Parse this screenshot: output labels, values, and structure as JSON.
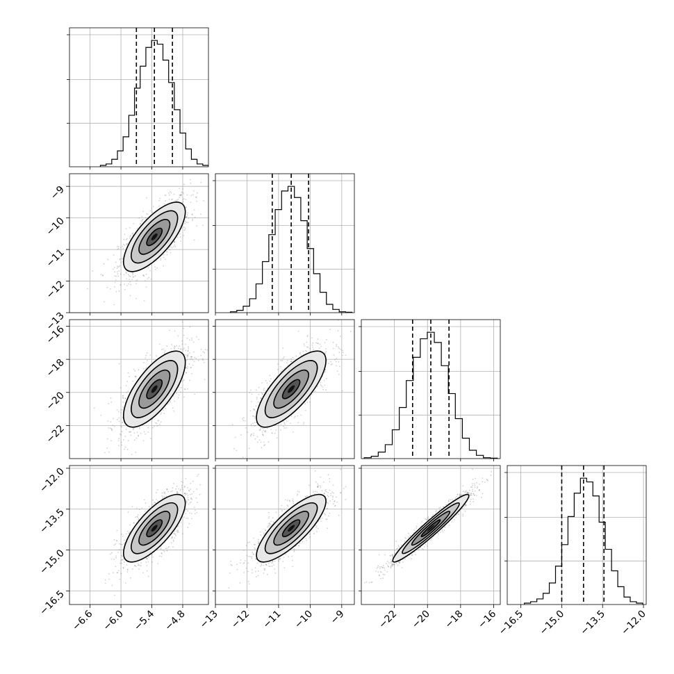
{
  "chart_data": {
    "type": "corner",
    "grid": true,
    "parameters": [
      {
        "mean": -5.35,
        "sigma": 0.3,
        "range": [
          -7.0,
          -4.3
        ],
        "ticks": [
          -6.6,
          -6.0,
          -5.4,
          -4.8
        ],
        "tick_labels": [
          "−6.6",
          "−6.0",
          "−5.4",
          "−4.8"
        ],
        "quantiles": [
          -5.7,
          -5.35,
          -5.0
        ],
        "hist_counts": [
          3,
          6,
          16,
          34,
          64,
          110,
          168,
          215,
          255,
          270,
          262,
          228,
          180,
          122,
          72,
          38,
          16,
          6,
          3
        ]
      },
      {
        "mean": -10.6,
        "sigma": 0.55,
        "range": [
          -13.0,
          -8.6
        ],
        "ticks": [
          -13,
          -12,
          -11,
          -10,
          -9
        ],
        "tick_labels": [
          "−13",
          "−12",
          "−11",
          "−10",
          "−9"
        ],
        "quantiles": [
          -11.2,
          -10.6,
          -10.05
        ],
        "hist_counts": [
          2,
          5,
          14,
          30,
          62,
          110,
          168,
          222,
          262,
          272,
          248,
          198,
          138,
          84,
          44,
          18,
          7,
          2,
          1
        ]
      },
      {
        "mean": -19.8,
        "sigma": 1.15,
        "range": [
          -24.0,
          -15.6
        ],
        "ticks": [
          -22,
          -20,
          -18,
          -16
        ],
        "tick_labels": [
          "−22",
          "−20",
          "−18",
          "−16"
        ],
        "quantiles": [
          -20.9,
          -19.8,
          -18.7
        ],
        "hist_counts": [
          2,
          5,
          14,
          30,
          62,
          110,
          168,
          218,
          258,
          272,
          250,
          200,
          140,
          86,
          44,
          18,
          7,
          2,
          1
        ]
      },
      {
        "mean": -14.2,
        "sigma": 0.62,
        "range": [
          -17.0,
          -11.9
        ],
        "ticks": [
          -16.5,
          -15.0,
          -13.5,
          -12.0
        ],
        "tick_labels": [
          "−16.5",
          "−15.0",
          "−13.5",
          "−12.0"
        ],
        "quantiles": [
          -15.0,
          -14.2,
          -13.45
        ],
        "hist_counts": [
          3,
          6,
          12,
          24,
          46,
          82,
          128,
          188,
          238,
          270,
          262,
          232,
          176,
          118,
          72,
          38,
          16,
          6,
          3
        ]
      }
    ],
    "y_tick_labels": {
      "1": {
        "values": [
          -13,
          -12,
          -11,
          -10,
          -9
        ],
        "labels": [
          "−13",
          "−12",
          "−11",
          "−10",
          "−9"
        ]
      },
      "2": {
        "values": [
          -22,
          -20,
          -18,
          -16
        ],
        "labels": [
          "−22",
          "−20",
          "−18",
          "−16"
        ]
      },
      "3": {
        "values": [
          -16.5,
          -15.0,
          -13.5,
          -12.0
        ],
        "labels": [
          "−16.5",
          "−15.0",
          "−13.5",
          "−12.0"
        ]
      }
    },
    "correlations": {
      "1-0": 0.72,
      "2-0": 0.7,
      "2-1": 0.75,
      "3-0": 0.74,
      "3-1": 0.8,
      "3-2": 0.96
    },
    "contour_levels_sigma": [
      0.5,
      1.0,
      1.5,
      2.0
    ]
  }
}
